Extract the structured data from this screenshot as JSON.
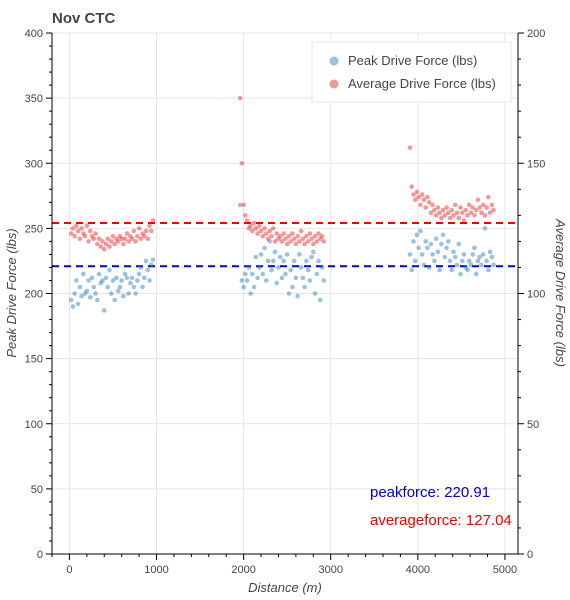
{
  "chart_data": {
    "type": "scatter",
    "title": "Nov CTC",
    "xlabel": "Distance (m)",
    "ylabel": "Peak Drive Force (lbs)",
    "y2label": "Average Drive Force (lbs)",
    "xlim": [
      -200,
      5150
    ],
    "ylim": [
      0,
      400
    ],
    "y2lim": [
      0,
      200
    ],
    "x_ticks": [
      0,
      1000,
      2000,
      3000,
      4000,
      5000
    ],
    "y_ticks": [
      0,
      50,
      100,
      150,
      200,
      250,
      300,
      350,
      400
    ],
    "y2_ticks": [
      0,
      50,
      100,
      150,
      200
    ],
    "grid": true,
    "legend_position": "top-right",
    "series": [
      {
        "name": "Peak Drive Force (lbs)",
        "axis": "left",
        "color": "#1f77b4",
        "points": [
          [
            20,
            195
          ],
          [
            40,
            190
          ],
          [
            60,
            200
          ],
          [
            80,
            210
          ],
          [
            100,
            192
          ],
          [
            120,
            205
          ],
          [
            140,
            198
          ],
          [
            160,
            215
          ],
          [
            180,
            200
          ],
          [
            200,
            202
          ],
          [
            220,
            210
          ],
          [
            240,
            197
          ],
          [
            260,
            212
          ],
          [
            280,
            205
          ],
          [
            300,
            200
          ],
          [
            320,
            195
          ],
          [
            340,
            215
          ],
          [
            360,
            208
          ],
          [
            380,
            210
          ],
          [
            400,
            187
          ],
          [
            420,
            212
          ],
          [
            440,
            205
          ],
          [
            460,
            218
          ],
          [
            480,
            200
          ],
          [
            500,
            210
          ],
          [
            520,
            195
          ],
          [
            540,
            212
          ],
          [
            560,
            202
          ],
          [
            580,
            205
          ],
          [
            600,
            210
          ],
          [
            620,
            198
          ],
          [
            640,
            215
          ],
          [
            660,
            212
          ],
          [
            680,
            200
          ],
          [
            700,
            208
          ],
          [
            720,
            212
          ],
          [
            740,
            205
          ],
          [
            760,
            200
          ],
          [
            780,
            210
          ],
          [
            800,
            215
          ],
          [
            820,
            220
          ],
          [
            840,
            205
          ],
          [
            860,
            212
          ],
          [
            880,
            225
          ],
          [
            900,
            218
          ],
          [
            920,
            210
          ],
          [
            940,
            222
          ],
          [
            960,
            226
          ],
          [
            1960,
            268
          ],
          [
            1980,
            210
          ],
          [
            2000,
            205
          ],
          [
            2020,
            215
          ],
          [
            2040,
            210
          ],
          [
            2060,
            220
          ],
          [
            2080,
            200
          ],
          [
            2100,
            215
          ],
          [
            2120,
            205
          ],
          [
            2140,
            228
          ],
          [
            2160,
            212
          ],
          [
            2180,
            220
          ],
          [
            2200,
            230
          ],
          [
            2220,
            215
          ],
          [
            2240,
            235
          ],
          [
            2260,
            210
          ],
          [
            2280,
            225
          ],
          [
            2300,
            240
          ],
          [
            2320,
            218
          ],
          [
            2340,
            225
          ],
          [
            2360,
            232
          ],
          [
            2380,
            208
          ],
          [
            2400,
            220
          ],
          [
            2420,
            228
          ],
          [
            2440,
            212
          ],
          [
            2460,
            225
          ],
          [
            2480,
            215
          ],
          [
            2500,
            230
          ],
          [
            2520,
            200
          ],
          [
            2540,
            218
          ],
          [
            2560,
            205
          ],
          [
            2580,
            225
          ],
          [
            2600,
            212
          ],
          [
            2620,
            198
          ],
          [
            2640,
            230
          ],
          [
            2660,
            220
          ],
          [
            2680,
            212
          ],
          [
            2700,
            205
          ],
          [
            2720,
            225
          ],
          [
            2740,
            218
          ],
          [
            2760,
            210
          ],
          [
            2780,
            228
          ],
          [
            2800,
            232
          ],
          [
            2820,
            200
          ],
          [
            2840,
            215
          ],
          [
            2860,
            225
          ],
          [
            2880,
            195
          ],
          [
            2900,
            220
          ],
          [
            2920,
            210
          ],
          [
            3910,
            230
          ],
          [
            3930,
            218
          ],
          [
            3950,
            240
          ],
          [
            3970,
            225
          ],
          [
            3990,
            245
          ],
          [
            4010,
            235
          ],
          [
            4030,
            248
          ],
          [
            4050,
            230
          ],
          [
            4070,
            222
          ],
          [
            4090,
            240
          ],
          [
            4110,
            235
          ],
          [
            4130,
            220
          ],
          [
            4150,
            238
          ],
          [
            4170,
            230
          ],
          [
            4190,
            225
          ],
          [
            4210,
            242
          ],
          [
            4230,
            232
          ],
          [
            4250,
            218
          ],
          [
            4270,
            238
          ],
          [
            4290,
            245
          ],
          [
            4310,
            228
          ],
          [
            4330,
            235
          ],
          [
            4350,
            240
          ],
          [
            4370,
            225
          ],
          [
            4390,
            218
          ],
          [
            4410,
            232
          ],
          [
            4430,
            228
          ],
          [
            4450,
            222
          ],
          [
            4470,
            238
          ],
          [
            4490,
            215
          ],
          [
            4510,
            225
          ],
          [
            4530,
            230
          ],
          [
            4550,
            220
          ],
          [
            4570,
            218
          ],
          [
            4590,
            225
          ],
          [
            4610,
            222
          ],
          [
            4630,
            230
          ],
          [
            4650,
            235
          ],
          [
            4670,
            215
          ],
          [
            4690,
            225
          ],
          [
            4710,
            228
          ],
          [
            4730,
            222
          ],
          [
            4750,
            230
          ],
          [
            4770,
            250
          ],
          [
            4790,
            225
          ],
          [
            4810,
            218
          ],
          [
            4830,
            232
          ],
          [
            4850,
            228
          ],
          [
            4870,
            222
          ]
        ]
      },
      {
        "name": "Average Drive Force (lbs)",
        "axis": "right",
        "color": "#e41a1c",
        "points": [
          [
            20,
            123
          ],
          [
            40,
            125
          ],
          [
            60,
            122
          ],
          [
            80,
            126
          ],
          [
            100,
            124
          ],
          [
            120,
            121
          ],
          [
            140,
            125
          ],
          [
            160,
            123
          ],
          [
            180,
            122
          ],
          [
            200,
            126
          ],
          [
            220,
            120
          ],
          [
            240,
            124
          ],
          [
            260,
            122
          ],
          [
            280,
            121
          ],
          [
            300,
            123
          ],
          [
            320,
            119
          ],
          [
            340,
            121
          ],
          [
            360,
            118
          ],
          [
            380,
            120
          ],
          [
            400,
            117
          ],
          [
            420,
            119
          ],
          [
            440,
            121
          ],
          [
            460,
            118
          ],
          [
            480,
            120
          ],
          [
            500,
            122
          ],
          [
            520,
            119
          ],
          [
            540,
            121
          ],
          [
            560,
            120
          ],
          [
            580,
            122
          ],
          [
            600,
            121
          ],
          [
            620,
            119
          ],
          [
            640,
            121
          ],
          [
            660,
            123
          ],
          [
            680,
            120
          ],
          [
            700,
            122
          ],
          [
            720,
            121
          ],
          [
            740,
            124
          ],
          [
            760,
            120
          ],
          [
            780,
            122
          ],
          [
            800,
            125
          ],
          [
            820,
            121
          ],
          [
            840,
            123
          ],
          [
            860,
            122
          ],
          [
            880,
            124
          ],
          [
            900,
            121
          ],
          [
            920,
            126
          ],
          [
            940,
            124
          ],
          [
            960,
            128
          ],
          [
            1960,
            175
          ],
          [
            1980,
            150
          ],
          [
            2000,
            134
          ],
          [
            2020,
            130
          ],
          [
            2040,
            128
          ],
          [
            2060,
            125
          ],
          [
            2080,
            126
          ],
          [
            2100,
            124
          ],
          [
            2120,
            127
          ],
          [
            2140,
            125
          ],
          [
            2160,
            123
          ],
          [
            2180,
            126
          ],
          [
            2200,
            124
          ],
          [
            2220,
            122
          ],
          [
            2240,
            125
          ],
          [
            2260,
            123
          ],
          [
            2280,
            121
          ],
          [
            2300,
            124
          ],
          [
            2320,
            122
          ],
          [
            2340,
            125
          ],
          [
            2360,
            120
          ],
          [
            2380,
            123
          ],
          [
            2400,
            121
          ],
          [
            2420,
            122
          ],
          [
            2440,
            120
          ],
          [
            2460,
            123
          ],
          [
            2480,
            121
          ],
          [
            2500,
            119
          ],
          [
            2520,
            122
          ],
          [
            2540,
            120
          ],
          [
            2560,
            123
          ],
          [
            2580,
            121
          ],
          [
            2600,
            119
          ],
          [
            2620,
            122
          ],
          [
            2640,
            120
          ],
          [
            2660,
            124
          ],
          [
            2680,
            121
          ],
          [
            2700,
            119
          ],
          [
            2720,
            122
          ],
          [
            2740,
            120
          ],
          [
            2760,
            123
          ],
          [
            2780,
            121
          ],
          [
            2800,
            119
          ],
          [
            2820,
            122
          ],
          [
            2840,
            120
          ],
          [
            2860,
            123
          ],
          [
            2880,
            121
          ],
          [
            2900,
            122
          ],
          [
            2920,
            120
          ],
          [
            3910,
            156
          ],
          [
            3930,
            141
          ],
          [
            3950,
            138
          ],
          [
            3970,
            136
          ],
          [
            3990,
            139
          ],
          [
            4010,
            137
          ],
          [
            4030,
            134
          ],
          [
            4050,
            138
          ],
          [
            4070,
            136
          ],
          [
            4090,
            133
          ],
          [
            4110,
            137
          ],
          [
            4130,
            135
          ],
          [
            4150,
            131
          ],
          [
            4170,
            134
          ],
          [
            4190,
            132
          ],
          [
            4210,
            130
          ],
          [
            4230,
            133
          ],
          [
            4250,
            131
          ],
          [
            4270,
            129
          ],
          [
            4290,
            132
          ],
          [
            4310,
            130
          ],
          [
            4330,
            133
          ],
          [
            4350,
            131
          ],
          [
            4370,
            129
          ],
          [
            4390,
            132
          ],
          [
            4410,
            130
          ],
          [
            4430,
            134
          ],
          [
            4450,
            131
          ],
          [
            4470,
            129
          ],
          [
            4490,
            133
          ],
          [
            4510,
            131
          ],
          [
            4530,
            128
          ],
          [
            4550,
            132
          ],
          [
            4570,
            130
          ],
          [
            4590,
            134
          ],
          [
            4610,
            131
          ],
          [
            4630,
            133
          ],
          [
            4650,
            130
          ],
          [
            4670,
            132
          ],
          [
            4690,
            136
          ],
          [
            4710,
            133
          ],
          [
            4730,
            131
          ],
          [
            4750,
            134
          ],
          [
            4770,
            130
          ],
          [
            4790,
            133
          ],
          [
            4810,
            137
          ],
          [
            4830,
            131
          ],
          [
            4850,
            134
          ],
          [
            4870,
            132
          ]
        ]
      }
    ],
    "reference_lines": [
      {
        "axis": "left",
        "value": 220.91,
        "color": "#0000cc"
      },
      {
        "axis": "right",
        "value": 127.04,
        "color": "#ee0000"
      }
    ],
    "annotations": [
      {
        "text": "peakforce: 220.91",
        "color": "#0000cc"
      },
      {
        "text": "averageforce: 127.04",
        "color": "#ee0000"
      }
    ]
  }
}
